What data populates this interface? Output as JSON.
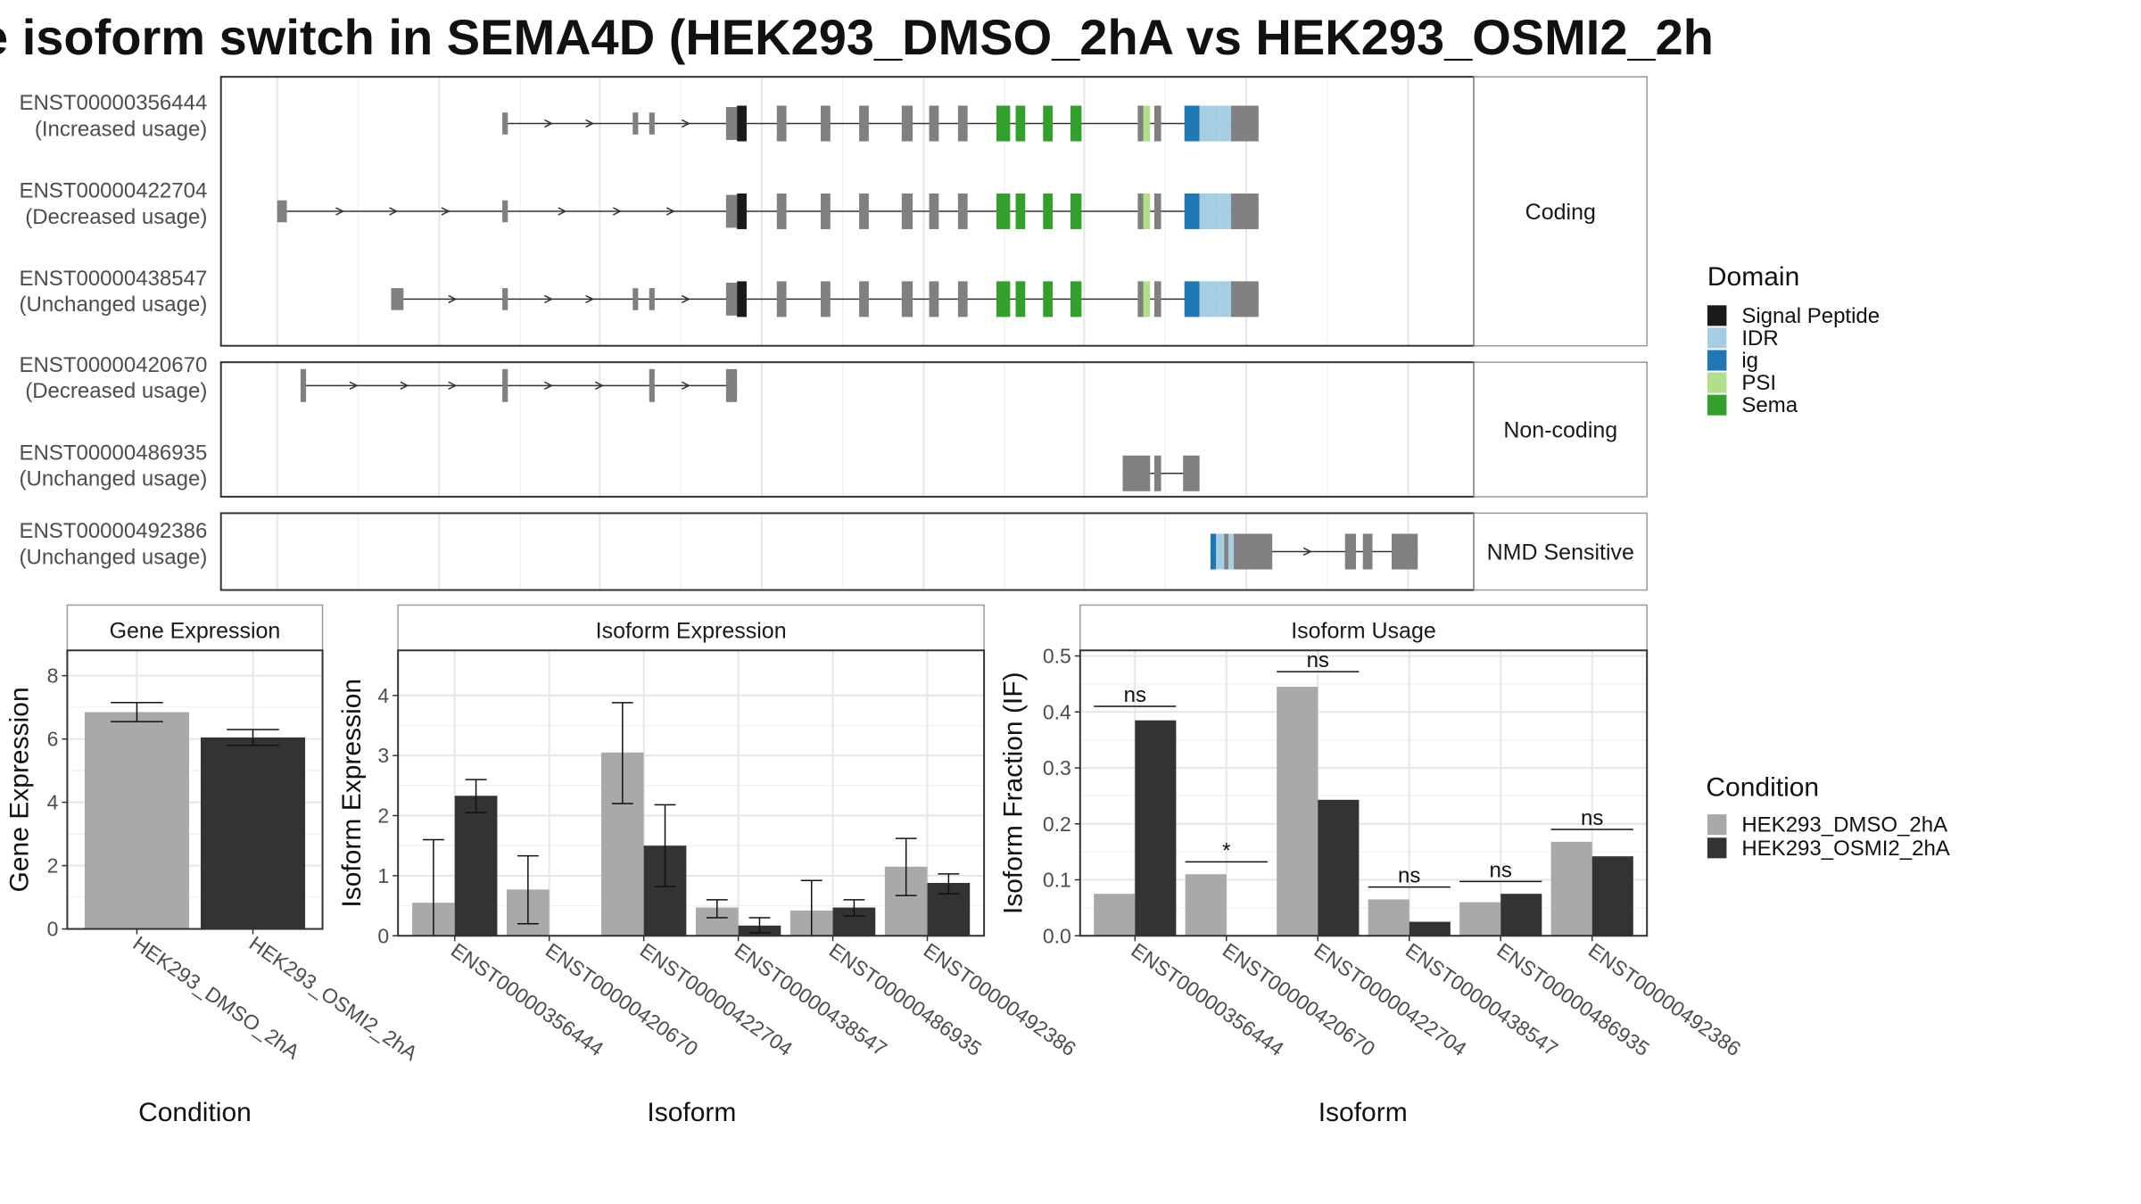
{
  "title": "e isoform switch in SEMA4D (HEK293_DMSO_2hA vs HEK293_OSMI2_2h",
  "colors": {
    "exon_default": "#808080",
    "signal_peptide": "#1a1a1a",
    "idr": "#a6cee3",
    "ig": "#1f78b4",
    "psi": "#b2df8a",
    "sema": "#33a02c",
    "condition_1": "#a9a9a9",
    "condition_2": "#333333"
  },
  "panels": {
    "coding": "Coding",
    "noncoding": "Non-coding",
    "nmd": "NMD Sensitive"
  },
  "isoforms": [
    {
      "id": "ENST00000356444",
      "usage": "(Increased usage)"
    },
    {
      "id": "ENST00000422704",
      "usage": "(Decreased usage)"
    },
    {
      "id": "ENST00000438547",
      "usage": "(Unchanged usage)"
    },
    {
      "id": "ENST00000420670",
      "usage": "(Decreased usage)"
    },
    {
      "id": "ENST00000486935",
      "usage": "(Unchanged usage)"
    },
    {
      "id": "ENST00000492386",
      "usage": "(Unchanged usage)"
    }
  ],
  "domain_legend": {
    "title": "Domain",
    "items": [
      "Signal Peptide",
      "IDR",
      "ig",
      "PSI",
      "Sema"
    ]
  },
  "condition_legend": {
    "title": "Condition",
    "items": [
      "HEK293_DMSO_2hA",
      "HEK293_OSMI2_2hA"
    ]
  },
  "chart_data": [
    {
      "type": "bar",
      "title": "Gene Expression",
      "xlabel": "Condition",
      "ylabel": "Gene Expression",
      "ylim": [
        0,
        8.8
      ],
      "yticks": [
        0,
        2,
        4,
        6,
        8
      ],
      "categories": [
        "HEK293_DMSO_2hA",
        "HEK293_OSMI2_2hA"
      ],
      "values": [
        6.85,
        6.05
      ],
      "error": [
        [
          6.55,
          7.15
        ],
        [
          5.8,
          6.3
        ]
      ]
    },
    {
      "type": "bar",
      "title": "Isoform Expression",
      "xlabel": "Isoform",
      "ylabel": "Isoform Expression",
      "ylim": [
        0,
        4.75
      ],
      "yticks": [
        0,
        1,
        2,
        3,
        4
      ],
      "categories": [
        "ENST00000356444",
        "ENST00000420670",
        "ENST00000422704",
        "ENST00000438547",
        "ENST00000486935",
        "ENST00000492386"
      ],
      "series": [
        {
          "name": "HEK293_DMSO_2hA",
          "values": [
            0.55,
            0.77,
            3.05,
            0.47,
            0.42,
            1.15
          ],
          "error": [
            [
              0,
              1.6
            ],
            [
              0.2,
              1.33
            ],
            [
              2.2,
              3.88
            ],
            [
              0.3,
              0.6
            ],
            [
              0,
              0.92
            ],
            [
              0.67,
              1.62
            ]
          ]
        },
        {
          "name": "HEK293_OSMI2_2hA",
          "values": [
            2.33,
            0.0,
            1.5,
            0.17,
            0.47,
            0.88
          ],
          "error": [
            [
              2.05,
              2.6
            ],
            [
              0,
              0
            ],
            [
              0.82,
              2.18
            ],
            [
              0.05,
              0.3
            ],
            [
              0.33,
              0.6
            ],
            [
              0.7,
              1.03
            ]
          ]
        }
      ]
    },
    {
      "type": "bar",
      "title": "Isoform Usage",
      "xlabel": "Isoform",
      "ylabel": "Isoform Fraction (IF)",
      "ylim": [
        0,
        0.51
      ],
      "yticks": [
        0.0,
        0.1,
        0.2,
        0.3,
        0.4,
        0.5
      ],
      "categories": [
        "ENST00000356444",
        "ENST00000420670",
        "ENST00000422704",
        "ENST00000438547",
        "ENST00000486935",
        "ENST00000492386"
      ],
      "series": [
        {
          "name": "HEK293_DMSO_2hA",
          "values": [
            0.075,
            0.11,
            0.445,
            0.065,
            0.06,
            0.168
          ]
        },
        {
          "name": "HEK293_OSMI2_2hA",
          "values": [
            0.385,
            0.0,
            0.243,
            0.025,
            0.075,
            0.142
          ]
        }
      ],
      "significance": [
        "ns",
        "*",
        "ns",
        "ns",
        "ns",
        "ns"
      ],
      "sig_level": [
        0.41,
        0.132,
        0.472,
        0.087,
        0.097,
        0.19
      ]
    }
  ]
}
